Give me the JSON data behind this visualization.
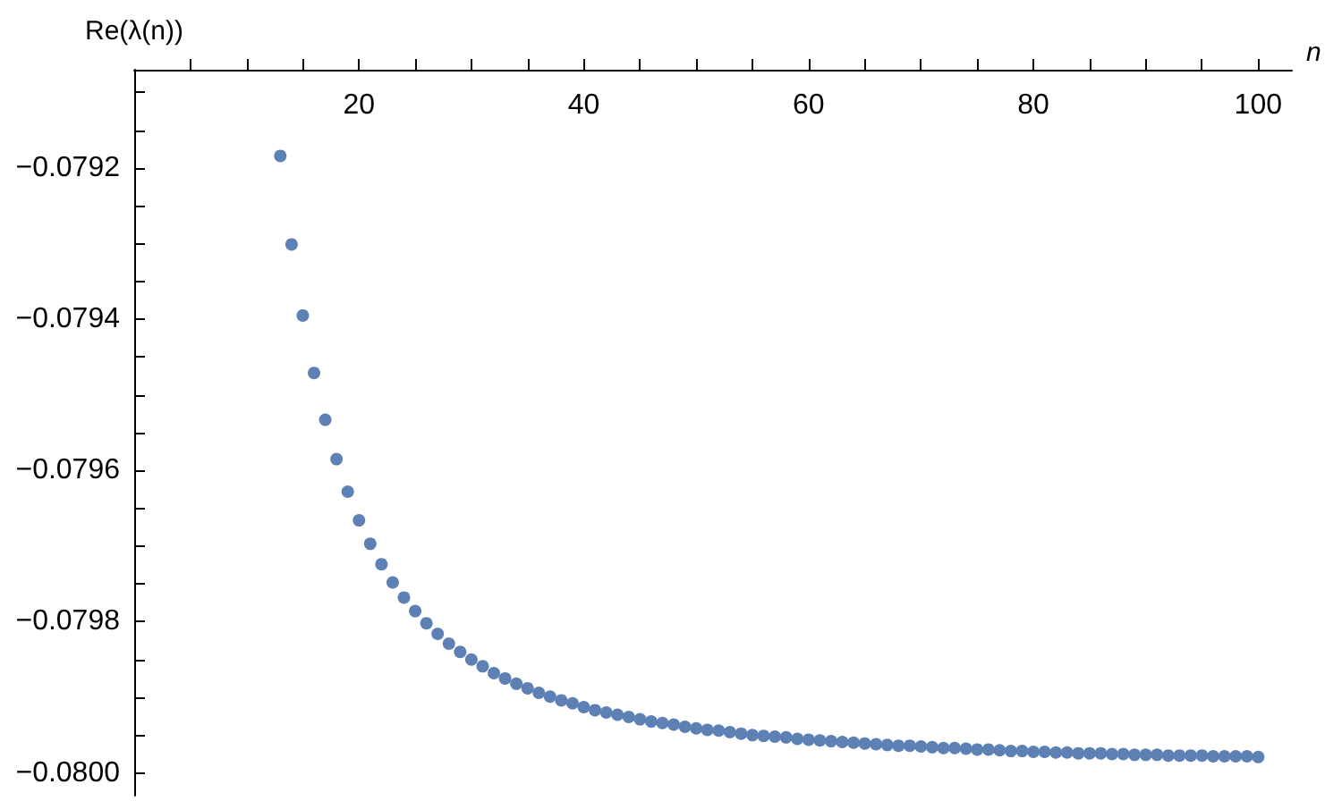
{
  "chart_data": {
    "type": "scatter",
    "xlabel": "n",
    "ylabel": "Re(λ(n))",
    "marker": "circle",
    "grid": false,
    "xlim": [
      0,
      103
    ],
    "ylim": [
      -0.08003,
      -0.07907
    ],
    "xticks": [
      {
        "value": 5,
        "label": null
      },
      {
        "value": 10,
        "label": null
      },
      {
        "value": 15,
        "label": null
      },
      20,
      {
        "value": 25,
        "label": null
      },
      {
        "value": 30,
        "label": null
      },
      {
        "value": 35,
        "label": null
      },
      40,
      {
        "value": 45,
        "label": null
      },
      {
        "value": 50,
        "label": null
      },
      {
        "value": 55,
        "label": null
      },
      60,
      {
        "value": 65,
        "label": null
      },
      {
        "value": 70,
        "label": null
      },
      {
        "value": 75,
        "label": null
      },
      80,
      {
        "value": 85,
        "label": null
      },
      {
        "value": 90,
        "label": null
      },
      {
        "value": 95,
        "label": null
      },
      100
    ],
    "yticks": [
      {
        "value": -0.0791,
        "label": null
      },
      {
        "value": -0.07915,
        "label": null
      },
      {
        "value": -0.0792,
        "label": "−0.0792"
      },
      {
        "value": -0.07925,
        "label": null
      },
      {
        "value": -0.0793,
        "label": null
      },
      {
        "value": -0.07935,
        "label": null
      },
      {
        "value": -0.0794,
        "label": "−0.0794"
      },
      {
        "value": -0.07945,
        "label": null
      },
      {
        "value": -0.0795,
        "label": null
      },
      {
        "value": -0.07955,
        "label": null
      },
      {
        "value": -0.0796,
        "label": "−0.0796"
      },
      {
        "value": -0.07965,
        "label": null
      },
      {
        "value": -0.0797,
        "label": null
      },
      {
        "value": -0.07975,
        "label": null
      },
      {
        "value": -0.0798,
        "label": "−0.0798"
      },
      {
        "value": -0.07985,
        "label": null
      },
      {
        "value": -0.0799,
        "label": null
      },
      {
        "value": -0.07995,
        "label": null
      },
      {
        "value": -0.08,
        "label": "−0.0800"
      }
    ],
    "series": [
      {
        "color": "#5e81b5",
        "x": [
          13,
          14,
          15,
          16,
          17,
          18,
          19,
          20,
          21,
          22,
          23,
          24,
          25,
          26,
          27,
          28,
          29,
          30,
          31,
          32,
          33,
          34,
          35,
          36,
          37,
          38,
          39,
          40,
          41,
          42,
          43,
          44,
          45,
          46,
          47,
          48,
          49,
          50,
          51,
          52,
          53,
          54,
          55,
          56,
          57,
          58,
          59,
          60,
          61,
          62,
          63,
          64,
          65,
          66,
          67,
          68,
          69,
          70,
          71,
          72,
          73,
          74,
          75,
          76,
          77,
          78,
          79,
          80,
          81,
          82,
          83,
          84,
          85,
          86,
          87,
          88,
          89,
          90,
          91,
          92,
          93,
          94,
          95,
          96,
          97,
          98,
          99,
          100
        ],
        "values": [
          -0.079184,
          -0.079301,
          -0.079395,
          -0.079471,
          -0.079533,
          -0.079585,
          -0.079628,
          -0.079666,
          -0.079697,
          -0.079724,
          -0.079748,
          -0.079768,
          -0.079786,
          -0.079802,
          -0.079816,
          -0.079829,
          -0.07984,
          -0.07985,
          -0.079859,
          -0.079868,
          -0.079875,
          -0.079882,
          -0.079888,
          -0.079894,
          -0.079899,
          -0.079904,
          -0.079908,
          -0.079913,
          -0.079917,
          -0.07992,
          -0.079923,
          -0.079926,
          -0.079929,
          -0.079932,
          -0.079934,
          -0.079936,
          -0.079939,
          -0.079941,
          -0.079943,
          -0.079944,
          -0.079946,
          -0.079948,
          -0.07995,
          -0.079951,
          -0.079952,
          -0.079953,
          -0.079955,
          -0.079956,
          -0.079957,
          -0.079958,
          -0.079959,
          -0.07996,
          -0.079961,
          -0.079962,
          -0.079963,
          -0.079964,
          -0.079964,
          -0.079965,
          -0.079966,
          -0.079967,
          -0.079967,
          -0.079968,
          -0.079969,
          -0.079969,
          -0.07997,
          -0.079971,
          -0.079971,
          -0.079972,
          -0.079972,
          -0.079973,
          -0.079973,
          -0.079974,
          -0.079974,
          -0.079974,
          -0.079975,
          -0.079975,
          -0.079976,
          -0.079976,
          -0.079976,
          -0.079977,
          -0.079977,
          -0.079977,
          -0.079977,
          -0.079978,
          -0.079978,
          -0.079978,
          -0.079978,
          -0.079979
        ]
      }
    ]
  }
}
